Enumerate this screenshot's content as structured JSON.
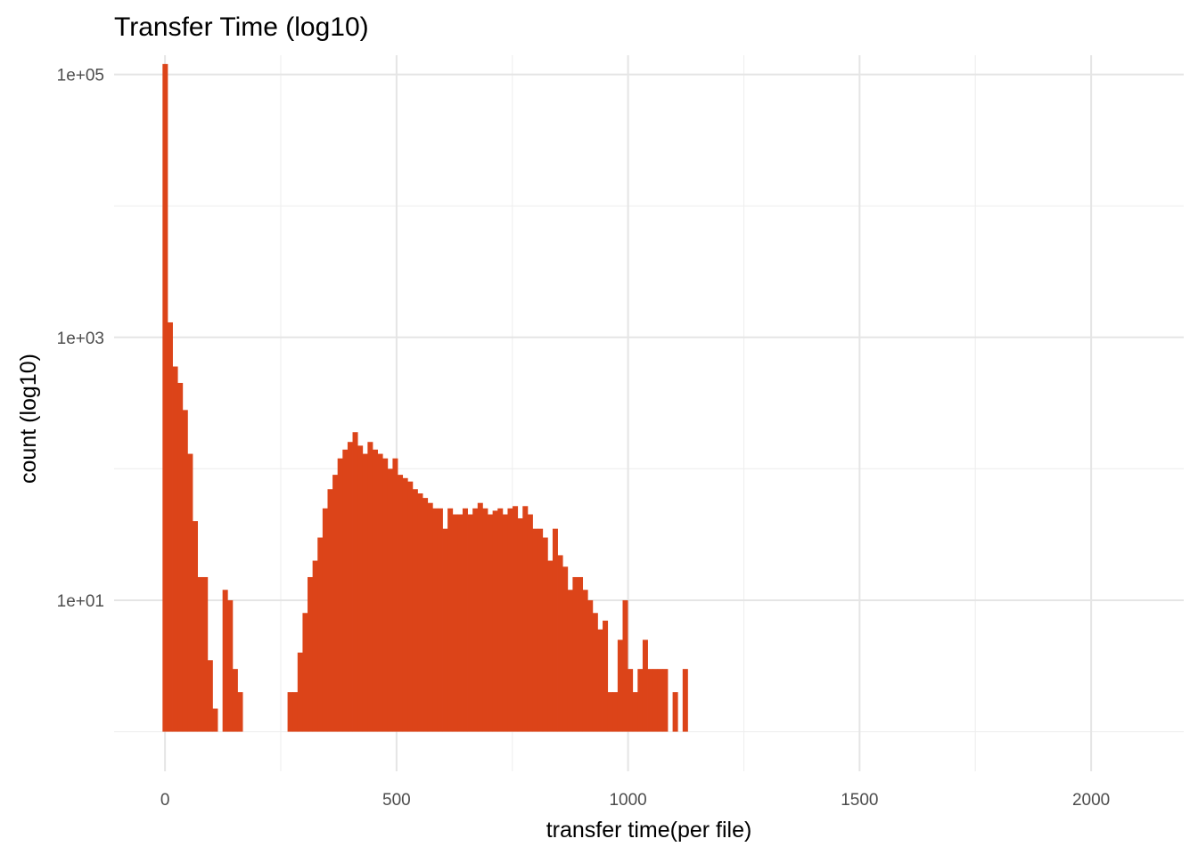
{
  "chart_data": {
    "type": "bar",
    "title": "Transfer Time (log10)",
    "xlabel": "transfer time(per file)",
    "ylabel": "count (log10)",
    "x_scale": "linear",
    "y_scale": "log10",
    "xlim": [
      -110,
      2200
    ],
    "ylim": [
      0.5,
      140000
    ],
    "x_ticks": [
      0,
      500,
      1000,
      1500,
      2000
    ],
    "x_tick_labels": [
      "0",
      "500",
      "1000",
      "1500",
      "2000"
    ],
    "y_ticks": [
      10,
      1000,
      100000
    ],
    "y_tick_labels": [
      "1e+01",
      "1e+03",
      "1e+05"
    ],
    "grid": true,
    "legend": "none",
    "bar_color": "#DC4419",
    "bin_width": 10.8,
    "bins": [
      {
        "x": 0,
        "count": 120000
      },
      {
        "x": 10.8,
        "count": 1300
      },
      {
        "x": 21.6,
        "count": 600
      },
      {
        "x": 32.4,
        "count": 450
      },
      {
        "x": 43.2,
        "count": 280
      },
      {
        "x": 54,
        "count": 130
      },
      {
        "x": 64.8,
        "count": 40
      },
      {
        "x": 75.6,
        "count": 15
      },
      {
        "x": 86.4,
        "count": 15
      },
      {
        "x": 97.2,
        "count": 3.5
      },
      {
        "x": 108,
        "count": 1.5
      },
      {
        "x": 118.8,
        "count": 1
      },
      {
        "x": 129.6,
        "count": 12
      },
      {
        "x": 140.4,
        "count": 10
      },
      {
        "x": 151.2,
        "count": 3
      },
      {
        "x": 162,
        "count": 2
      },
      {
        "x": 270,
        "count": 2
      },
      {
        "x": 280.8,
        "count": 2
      },
      {
        "x": 291.6,
        "count": 4
      },
      {
        "x": 302.4,
        "count": 8
      },
      {
        "x": 313.2,
        "count": 15
      },
      {
        "x": 324,
        "count": 20
      },
      {
        "x": 334.8,
        "count": 30
      },
      {
        "x": 345.6,
        "count": 50
      },
      {
        "x": 356.4,
        "count": 70
      },
      {
        "x": 367.2,
        "count": 90
      },
      {
        "x": 378,
        "count": 120
      },
      {
        "x": 388.8,
        "count": 140
      },
      {
        "x": 399.6,
        "count": 160
      },
      {
        "x": 410.4,
        "count": 190
      },
      {
        "x": 421.2,
        "count": 150
      },
      {
        "x": 432,
        "count": 130
      },
      {
        "x": 442.8,
        "count": 160
      },
      {
        "x": 453.6,
        "count": 140
      },
      {
        "x": 464.4,
        "count": 130
      },
      {
        "x": 475.2,
        "count": 120
      },
      {
        "x": 486,
        "count": 100
      },
      {
        "x": 496.8,
        "count": 120
      },
      {
        "x": 507.6,
        "count": 90
      },
      {
        "x": 518.4,
        "count": 85
      },
      {
        "x": 529.2,
        "count": 80
      },
      {
        "x": 540,
        "count": 70
      },
      {
        "x": 550.8,
        "count": 65
      },
      {
        "x": 561.6,
        "count": 60
      },
      {
        "x": 572.4,
        "count": 55
      },
      {
        "x": 583.2,
        "count": 50
      },
      {
        "x": 594,
        "count": 50
      },
      {
        "x": 604.8,
        "count": 35
      },
      {
        "x": 615.6,
        "count": 50
      },
      {
        "x": 626.4,
        "count": 45
      },
      {
        "x": 637.2,
        "count": 45
      },
      {
        "x": 648,
        "count": 50
      },
      {
        "x": 658.8,
        "count": 45
      },
      {
        "x": 669.6,
        "count": 50
      },
      {
        "x": 680.4,
        "count": 55
      },
      {
        "x": 691.2,
        "count": 50
      },
      {
        "x": 702,
        "count": 45
      },
      {
        "x": 712.8,
        "count": 48
      },
      {
        "x": 723.6,
        "count": 50
      },
      {
        "x": 734.4,
        "count": 45
      },
      {
        "x": 745.2,
        "count": 50
      },
      {
        "x": 756,
        "count": 52
      },
      {
        "x": 766.8,
        "count": 42
      },
      {
        "x": 777.6,
        "count": 52
      },
      {
        "x": 788.4,
        "count": 45
      },
      {
        "x": 799.2,
        "count": 35
      },
      {
        "x": 810,
        "count": 35
      },
      {
        "x": 820.8,
        "count": 30
      },
      {
        "x": 831.6,
        "count": 20
      },
      {
        "x": 842.4,
        "count": 35
      },
      {
        "x": 853.2,
        "count": 22
      },
      {
        "x": 864,
        "count": 18
      },
      {
        "x": 874.8,
        "count": 12
      },
      {
        "x": 885.6,
        "count": 15
      },
      {
        "x": 896.4,
        "count": 15
      },
      {
        "x": 907.2,
        "count": 12
      },
      {
        "x": 918,
        "count": 10
      },
      {
        "x": 928.8,
        "count": 8
      },
      {
        "x": 939.6,
        "count": 6
      },
      {
        "x": 950.4,
        "count": 7
      },
      {
        "x": 961.2,
        "count": 2
      },
      {
        "x": 972,
        "count": 2
      },
      {
        "x": 982.8,
        "count": 5
      },
      {
        "x": 993.6,
        "count": 10
      },
      {
        "x": 1004.4,
        "count": 3
      },
      {
        "x": 1015.2,
        "count": 2
      },
      {
        "x": 1026,
        "count": 3
      },
      {
        "x": 1036.8,
        "count": 5
      },
      {
        "x": 1047.6,
        "count": 3
      },
      {
        "x": 1058.4,
        "count": 3
      },
      {
        "x": 1069.2,
        "count": 3
      },
      {
        "x": 1080,
        "count": 3
      },
      {
        "x": 1101.6,
        "count": 2
      },
      {
        "x": 1123.2,
        "count": 3
      }
    ]
  }
}
